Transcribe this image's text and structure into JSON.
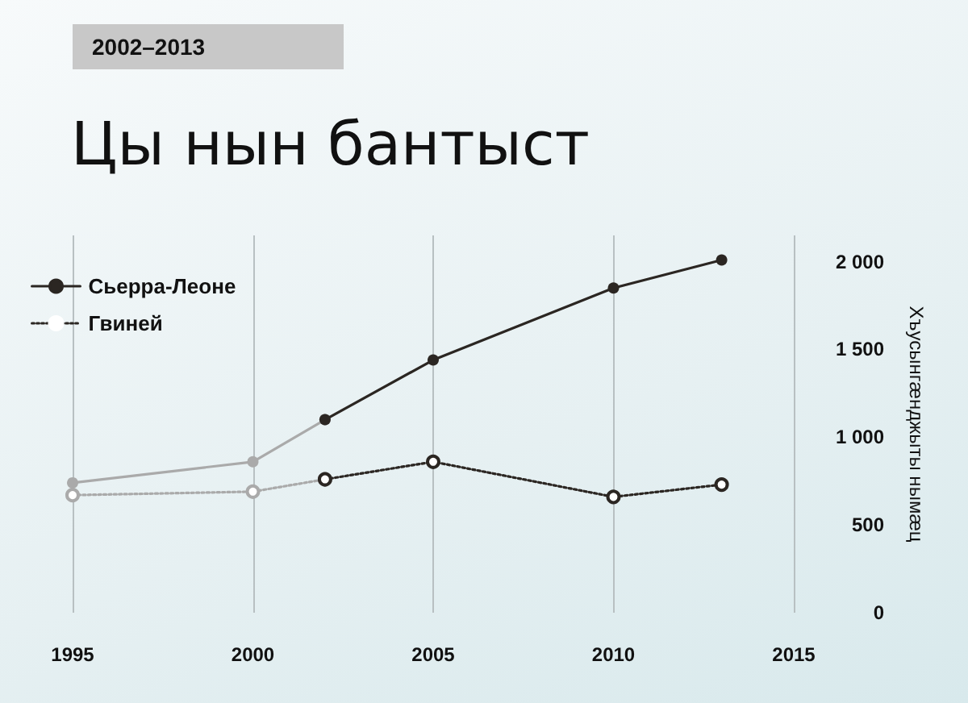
{
  "chart_data": {
    "type": "line",
    "title": "Цы нын бантыст",
    "subtitle": "2002–2013",
    "y2label": "Хъусынгæнджыты нымæц",
    "series": [
      {
        "color": "#aaaaaa",
        "line_style": "solid",
        "x": [
          1995,
          2000,
          2002
        ],
        "values": [
          740,
          860,
          1100
        ]
      },
      {
        "color": "#aaaaaa",
        "line_style": "dotted",
        "x": [
          1995,
          2000,
          2002
        ],
        "values": [
          670,
          690,
          760
        ]
      },
      {
        "name": "Сьерра-Леоне",
        "color": "#2b2622",
        "line_style": "solid",
        "x": [
          2002,
          2005,
          2010,
          2013
        ],
        "values": [
          1100,
          1440,
          1850,
          2010
        ]
      },
      {
        "name": "Гвиней",
        "color": "#2b2622",
        "line_style": "dotted",
        "x": [
          2002,
          2005,
          2010,
          2013
        ],
        "values": [
          760,
          860,
          660,
          730
        ]
      }
    ],
    "xlim": [
      1995,
      2015
    ],
    "xticks": [
      1995,
      2000,
      2005,
      2010,
      2015
    ],
    "ylim": [
      0,
      2150
    ],
    "yticks": [
      0,
      500,
      {
        "value": 1000,
        "label": "1 000"
      },
      {
        "value": 1500,
        "label": "1 500"
      },
      {
        "value": 2000,
        "label": "2 000"
      }
    ],
    "grid": "x",
    "legend": "top left",
    "marker": "circle"
  }
}
